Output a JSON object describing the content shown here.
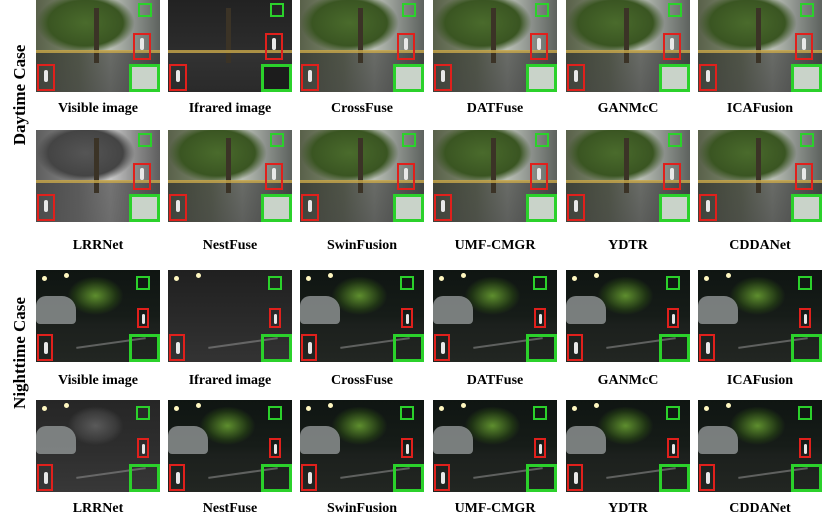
{
  "side_labels": {
    "daytime": "Daytime Case",
    "nighttime": "Nighttime Case"
  },
  "rows": {
    "day_top": [
      "Visible image",
      "Ifrared image",
      "CrossFuse",
      "DATFuse",
      "GANMcC",
      "ICAFusion"
    ],
    "day_bottom": [
      "LRRNet",
      "NestFuse",
      "SwinFusion",
      "UMF-CMGR",
      "YDTR",
      "CDDANet"
    ],
    "night_top": [
      "Visible image",
      "Ifrared image",
      "CrossFuse",
      "DATFuse",
      "GANMcC",
      "ICAFusion"
    ],
    "night_bottom": [
      "LRRNet",
      "NestFuse",
      "SwinFusion",
      "UMF-CMGR",
      "YDTR",
      "CDDANet"
    ]
  },
  "colors": {
    "highlight_red": "#e0201c",
    "highlight_green": "#2bd12b"
  }
}
